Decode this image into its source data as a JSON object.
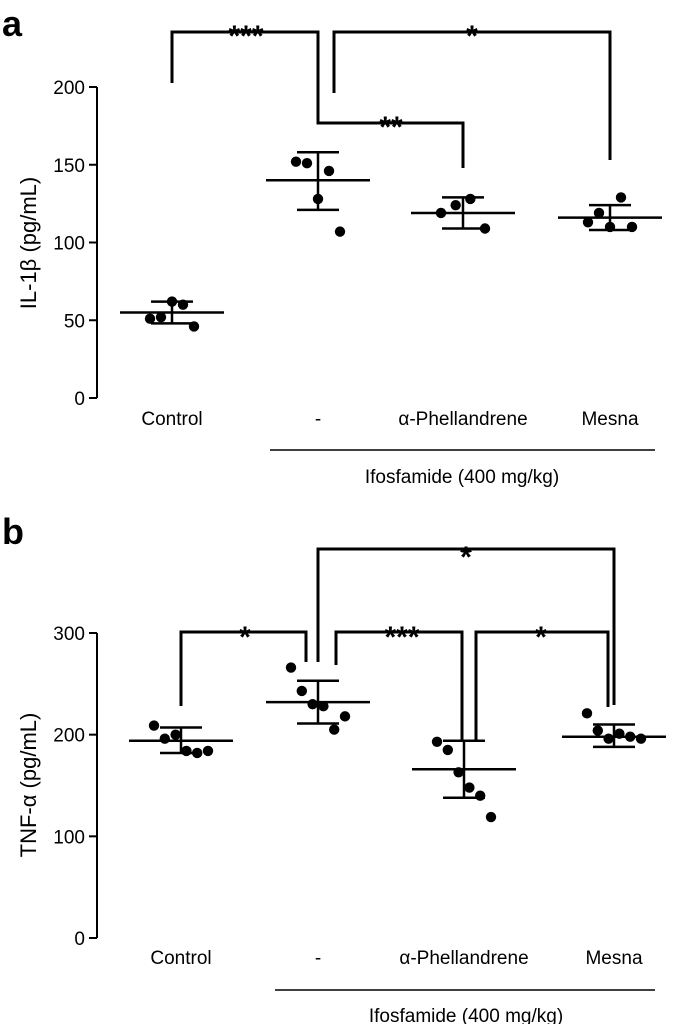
{
  "chart_data": [
    {
      "panel": "a",
      "type": "scatter",
      "ylabel": "IL-1β (pg/mL)",
      "ylim": [
        0,
        200
      ],
      "yticks": [
        0,
        50,
        100,
        150,
        200
      ],
      "categories": [
        "Control",
        "-",
        "α-Phellandrene",
        "Mesna"
      ],
      "group_label": "Ifosfamide  (400 mg/kg)",
      "groups": [
        {
          "name": "Control",
          "mean": 55,
          "sd_low": 48,
          "sd_high": 62,
          "points": [
            51,
            52,
            62,
            60,
            46
          ]
        },
        {
          "name": "-",
          "mean": 140,
          "sd_low": 121,
          "sd_high": 158,
          "points": [
            152,
            151,
            128,
            146,
            107
          ]
        },
        {
          "name": "α-Phellandrene",
          "mean": 119,
          "sd_low": 109,
          "sd_high": 129,
          "points": [
            119,
            124,
            128,
            109
          ]
        },
        {
          "name": "Mesna",
          "mean": 116,
          "sd_low": 108,
          "sd_high": 124,
          "points": [
            113,
            119,
            110,
            129,
            110
          ]
        }
      ],
      "comparisons": [
        {
          "from": "Control",
          "to": "-",
          "label": "***"
        },
        {
          "from": "-",
          "to": "α-Phellandrene",
          "label": "**"
        },
        {
          "from": "-",
          "to": "Mesna",
          "label": "*"
        }
      ]
    },
    {
      "panel": "b",
      "type": "scatter",
      "ylabel": "TNF-α (pg/mL)",
      "ylim": [
        0,
        300
      ],
      "yticks": [
        0,
        100,
        200,
        300
      ],
      "categories": [
        "Control",
        "-",
        "α-Phellandrene",
        "Mesna"
      ],
      "group_label": "Ifosfamide  (400 mg/kg)",
      "groups": [
        {
          "name": "Control",
          "mean": 194,
          "sd_low": 182,
          "sd_high": 207,
          "points": [
            209,
            196,
            200,
            184,
            182,
            184
          ]
        },
        {
          "name": "-",
          "mean": 232,
          "sd_low": 211,
          "sd_high": 253,
          "points": [
            266,
            243,
            230,
            228,
            205,
            218
          ]
        },
        {
          "name": "α-Phellandrene",
          "mean": 166,
          "sd_low": 138,
          "sd_high": 194,
          "points": [
            193,
            185,
            163,
            148,
            140,
            119
          ]
        },
        {
          "name": "Mesna",
          "mean": 198,
          "sd_low": 188,
          "sd_high": 210,
          "points": [
            221,
            204,
            196,
            201,
            198,
            196
          ]
        }
      ],
      "comparisons": [
        {
          "from": "Control",
          "to": "-",
          "label": "*"
        },
        {
          "from": "-",
          "to": "α-Phellandrene",
          "label": "***"
        },
        {
          "from": "α-Phellandrene",
          "to": "Mesna",
          "label": "*"
        },
        {
          "from": "-",
          "to": "Mesna",
          "label": "*"
        }
      ]
    }
  ]
}
